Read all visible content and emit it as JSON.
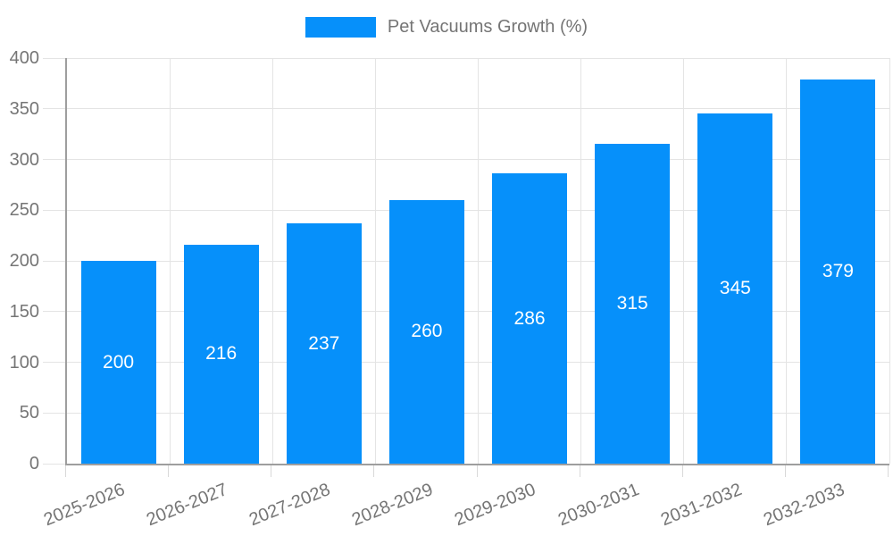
{
  "legend": {
    "label": "Pet Vacuums Growth (%)"
  },
  "colors": {
    "bar": "#0690FA",
    "bar_label": "#FFFFFF",
    "grid": "#E4E4E4",
    "axis": "#9E9E9E",
    "text": "#757575",
    "background": "#FFFFFF"
  },
  "chart_data": {
    "type": "bar",
    "title": "Pet Vacuums Growth (%)",
    "series_name": "Pet Vacuums Growth (%)",
    "categories": [
      "2025-2026",
      "2026-2027",
      "2027-2028",
      "2028-2029",
      "2029-2030",
      "2030-2031",
      "2031-2032",
      "2032-2033"
    ],
    "values": [
      200,
      216,
      237,
      260,
      286,
      315,
      345,
      379
    ],
    "bar_labels": [
      200,
      216,
      237,
      260,
      286,
      315,
      345,
      379
    ],
    "xlabel": "",
    "ylabel": "",
    "ylim": [
      0,
      400
    ],
    "yticks": [
      0,
      50,
      100,
      150,
      200,
      250,
      300,
      350,
      400
    ],
    "grid": true,
    "legend_position": "top",
    "x_label_rotation_deg": -22
  }
}
